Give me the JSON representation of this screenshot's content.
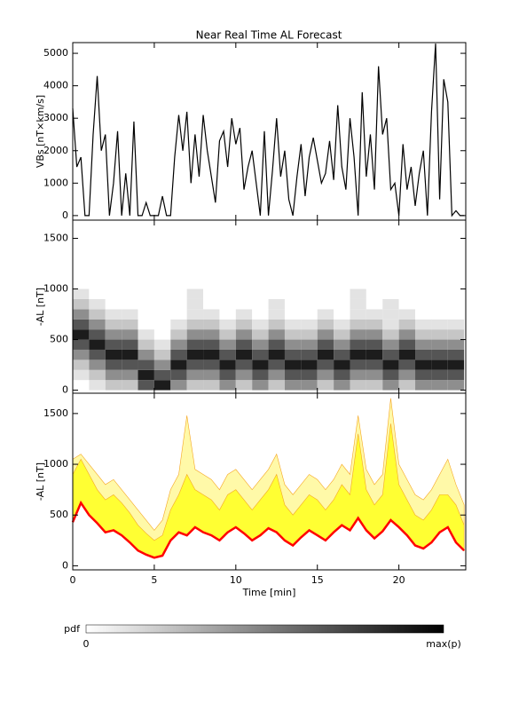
{
  "chart_data": [
    {
      "type": "line",
      "title": "Near Real Time AL Forecast",
      "ylabel": "VBs [nT×km/s]",
      "color": "#000000",
      "x": [
        0,
        0.25,
        0.5,
        0.75,
        1,
        1.25,
        1.5,
        1.75,
        2,
        2.25,
        2.5,
        2.75,
        3,
        3.25,
        3.5,
        3.75,
        4,
        4.25,
        4.5,
        4.75,
        5,
        5.25,
        5.5,
        5.75,
        6,
        6.25,
        6.5,
        6.75,
        7,
        7.25,
        7.5,
        7.75,
        8,
        8.25,
        8.5,
        8.75,
        9,
        9.25,
        9.5,
        9.75,
        10,
        10.25,
        10.5,
        10.75,
        11,
        11.25,
        11.5,
        11.75,
        12,
        12.25,
        12.5,
        12.75,
        13,
        13.25,
        13.5,
        13.75,
        14,
        14.25,
        14.5,
        14.75,
        15,
        15.25,
        15.5,
        15.75,
        16,
        16.25,
        16.5,
        16.75,
        17,
        17.25,
        17.5,
        17.75,
        18,
        18.25,
        18.5,
        18.75,
        19,
        19.25,
        19.5,
        19.75,
        20,
        20.25,
        20.5,
        20.75,
        21,
        21.25,
        21.5,
        21.75,
        22,
        22.25,
        22.5,
        22.75,
        23,
        23.25,
        23.5,
        23.75,
        24
      ],
      "values": [
        3300,
        1500,
        1800,
        0,
        0,
        2500,
        4300,
        2000,
        2500,
        0,
        1000,
        2600,
        0,
        1300,
        0,
        2900,
        0,
        0,
        400,
        0,
        0,
        0,
        600,
        0,
        0,
        1800,
        3100,
        2000,
        3200,
        1000,
        2500,
        1200,
        3100,
        2000,
        1200,
        400,
        2300,
        2600,
        1500,
        3000,
        2200,
        2700,
        800,
        1500,
        2000,
        1000,
        0,
        2600,
        0,
        1400,
        3000,
        1200,
        2000,
        500,
        0,
        1200,
        2200,
        600,
        1800,
        2400,
        1700,
        1000,
        1300,
        2300,
        1100,
        3400,
        1500,
        800,
        3000,
        1800,
        0,
        3800,
        1200,
        2500,
        800,
        4600,
        2500,
        3000,
        800,
        1000,
        0,
        2200,
        800,
        1500,
        300,
        1300,
        2000,
        0,
        3200,
        5300,
        500,
        4200,
        3500,
        0,
        150,
        0,
        0
      ],
      "xlim": [
        0,
        24.1
      ],
      "xticks": [
        0,
        5,
        10,
        15,
        20
      ],
      "ylim": [
        -140,
        5330
      ],
      "yticks": [
        0,
        1000,
        2000,
        3000,
        4000,
        5000
      ]
    },
    {
      "type": "heatmap",
      "ylabel": "-AL [nT]",
      "x_edges": [
        0,
        1,
        2,
        3,
        4,
        5,
        6,
        7,
        8,
        9,
        10,
        11,
        12,
        13,
        14,
        15,
        16,
        17,
        18,
        19,
        20,
        21,
        22,
        23,
        24
      ],
      "y_edges": [
        0,
        100,
        200,
        300,
        400,
        500,
        600,
        700,
        800,
        900,
        1000
      ],
      "pdf": [
        [
          0,
          1,
          2,
          4,
          6,
          8,
          6,
          4,
          2,
          1
        ],
        [
          1,
          2,
          4,
          6,
          8,
          6,
          4,
          2,
          1,
          0
        ],
        [
          2,
          4,
          6,
          8,
          6,
          4,
          2,
          1,
          0,
          0
        ],
        [
          2,
          4,
          6,
          8,
          6,
          4,
          2,
          1,
          0,
          0
        ],
        [
          6,
          8,
          6,
          4,
          2,
          1,
          0,
          0,
          0,
          0
        ],
        [
          8,
          6,
          4,
          2,
          1,
          0,
          0,
          0,
          0,
          0
        ],
        [
          4,
          6,
          8,
          6,
          4,
          2,
          1,
          0,
          0,
          0
        ],
        [
          2,
          4,
          6,
          8,
          6,
          4,
          2,
          1,
          1,
          1
        ],
        [
          2,
          4,
          6,
          8,
          6,
          4,
          2,
          1,
          0,
          0
        ],
        [
          4,
          6,
          8,
          6,
          4,
          2,
          1,
          0,
          0,
          0
        ],
        [
          2,
          4,
          6,
          8,
          6,
          4,
          2,
          1,
          0,
          0
        ],
        [
          4,
          6,
          8,
          6,
          4,
          2,
          1,
          0,
          0,
          0
        ],
        [
          2,
          4,
          6,
          8,
          6,
          4,
          2,
          1,
          1,
          0
        ],
        [
          4,
          6,
          8,
          6,
          4,
          2,
          1,
          0,
          0,
          0
        ],
        [
          4,
          6,
          8,
          6,
          4,
          2,
          1,
          0,
          0,
          0
        ],
        [
          2,
          4,
          6,
          8,
          6,
          4,
          2,
          1,
          0,
          0
        ],
        [
          4,
          6,
          8,
          6,
          4,
          2,
          1,
          0,
          0,
          0
        ],
        [
          2,
          4,
          6,
          8,
          6,
          4,
          2,
          1,
          1,
          1
        ],
        [
          2,
          4,
          6,
          8,
          6,
          4,
          2,
          1,
          0,
          0
        ],
        [
          4,
          6,
          8,
          6,
          4,
          2,
          1,
          1,
          1,
          0
        ],
        [
          2,
          4,
          6,
          8,
          6,
          4,
          2,
          1,
          0,
          0
        ],
        [
          4,
          6,
          8,
          6,
          4,
          2,
          1,
          0,
          0,
          0
        ],
        [
          4,
          6,
          8,
          6,
          4,
          2,
          1,
          0,
          0,
          0
        ],
        [
          4,
          6,
          8,
          6,
          4,
          2,
          1,
          0,
          0,
          0
        ]
      ],
      "pdf_max": 9,
      "xlim": [
        0,
        24.1
      ],
      "xticks": [
        0,
        5,
        10,
        15,
        20
      ],
      "ylim": [
        -30,
        1680
      ],
      "yticks": [
        0,
        500,
        1000,
        1500
      ]
    },
    {
      "type": "band",
      "ylabel": "-AL [nT]",
      "xlabel": "Time [min]",
      "x": [
        0,
        0.5,
        1,
        1.5,
        2,
        2.5,
        3,
        3.5,
        4,
        4.5,
        5,
        5.5,
        6,
        6.5,
        7,
        7.5,
        8,
        8.5,
        9,
        9.5,
        10,
        10.5,
        11,
        11.5,
        12,
        12.5,
        13,
        13.5,
        14,
        14.5,
        15,
        15.5,
        16,
        16.5,
        17,
        17.5,
        18,
        18.5,
        19,
        19.5,
        20,
        20.5,
        21,
        21.5,
        22,
        22.5,
        23,
        23.5,
        24
      ],
      "series": [
        {
          "color": "#fff9a8",
          "values": [
            1050,
            1100,
            1000,
            900,
            800,
            850,
            750,
            650,
            550,
            450,
            350,
            450,
            750,
            900,
            1480,
            950,
            900,
            850,
            750,
            900,
            950,
            850,
            750,
            850,
            950,
            1100,
            800,
            700,
            800,
            900,
            850,
            750,
            850,
            1000,
            900,
            1480,
            950,
            800,
            900,
            1650,
            1000,
            850,
            700,
            650,
            750,
            900,
            1050,
            800,
            600
          ]
        },
        {
          "color": "#ffff33",
          "values": [
            900,
            1050,
            900,
            750,
            650,
            700,
            620,
            520,
            400,
            320,
            250,
            300,
            550,
            700,
            900,
            750,
            700,
            650,
            550,
            700,
            750,
            650,
            550,
            650,
            750,
            900,
            600,
            500,
            600,
            700,
            650,
            550,
            650,
            800,
            700,
            1300,
            750,
            600,
            700,
            1400,
            800,
            650,
            500,
            450,
            550,
            700,
            700,
            600,
            400
          ]
        },
        {
          "color": "#ff0000",
          "values": [
            430,
            620,
            500,
            420,
            330,
            350,
            300,
            230,
            150,
            110,
            80,
            100,
            250,
            330,
            300,
            380,
            330,
            300,
            250,
            330,
            380,
            320,
            250,
            300,
            370,
            330,
            250,
            200,
            280,
            350,
            300,
            250,
            330,
            400,
            350,
            470,
            350,
            270,
            340,
            450,
            380,
            300,
            200,
            170,
            230,
            330,
            380,
            230,
            150
          ]
        }
      ],
      "xlim": [
        0,
        24.1
      ],
      "xticks": [
        0,
        5,
        10,
        15,
        20
      ],
      "ylim": [
        -40,
        1700
      ],
      "yticks": [
        0,
        500,
        1000,
        1500
      ]
    }
  ],
  "colorbar": {
    "label": "pdf",
    "min_label": "0",
    "max_label": "max(p)"
  }
}
